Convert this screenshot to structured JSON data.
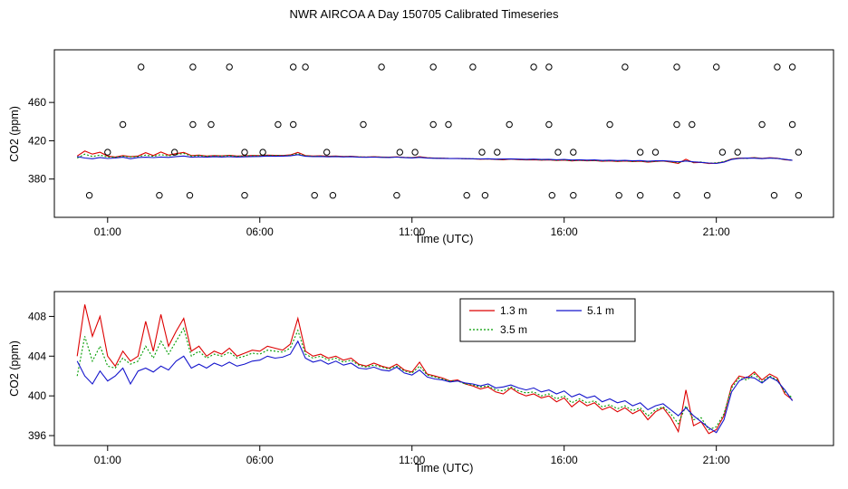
{
  "title": "NWR AIRCOA A  Day 150705  Calibrated Timeseries",
  "colors": {
    "series_1_3m": "#dd0000",
    "series_3_5m": "#009c00",
    "series_5_1m": "#1414cc",
    "axis": "#000000"
  },
  "chart_data": [
    {
      "type": "line",
      "panel": "full-calibrated-timeseries",
      "xlabel": "Time (UTC)",
      "ylabel": "CO2 (ppm)",
      "xlim": [
        -0.75,
        24.85
      ],
      "ylim": [
        340,
        515
      ],
      "xticks": [
        1,
        6,
        11,
        16,
        21
      ],
      "xtick_labels": [
        "01:00",
        "06:00",
        "11:00",
        "16:00",
        "21:00"
      ],
      "yticks": [
        380,
        420,
        460
      ],
      "grid": false,
      "x_start": 0,
      "x_step": 0.25,
      "series": [
        {
          "name": "1.3 m",
          "color": "#dd0000",
          "dash": "",
          "values": [
            404.0,
            409.2,
            406.0,
            408.0,
            404.0,
            403.0,
            404.5,
            403.5,
            404.0,
            407.5,
            404.5,
            408.2,
            405.0,
            406.5,
            407.8,
            404.5,
            405.0,
            404.0,
            404.5,
            404.2,
            404.8,
            404.0,
            404.3,
            404.6,
            404.5,
            405.0,
            404.8,
            404.6,
            405.2,
            407.8,
            404.5,
            404.0,
            404.2,
            403.8,
            404.0,
            403.6,
            403.8,
            403.2,
            403.0,
            403.3,
            403.0,
            402.8,
            403.2,
            402.6,
            402.4,
            403.4,
            402.2,
            402.0,
            401.8,
            401.5,
            401.6,
            401.2,
            401.0,
            400.7,
            400.9,
            400.4,
            400.2,
            400.8,
            400.3,
            400.0,
            400.2,
            399.8,
            400.0,
            399.4,
            399.8,
            398.9,
            399.5,
            399.0,
            399.3,
            398.6,
            398.9,
            398.4,
            398.8,
            398.2,
            398.6,
            397.6,
            398.4,
            398.8,
            397.8,
            396.4,
            400.6,
            397.0,
            397.4,
            396.2,
            396.6,
            398.0,
            401.0,
            402.0,
            401.8,
            402.4,
            401.6,
            402.2,
            401.8,
            400.2,
            399.6
          ]
        },
        {
          "name": "3.5 m",
          "color": "#009c00",
          "dash": "2,2",
          "values": [
            402.0,
            406.0,
            403.5,
            405.0,
            403.0,
            402.8,
            403.8,
            403.2,
            403.5,
            405.0,
            403.8,
            405.5,
            404.2,
            405.5,
            406.8,
            404.0,
            404.5,
            403.8,
            404.2,
            404.0,
            404.4,
            403.8,
            404.0,
            404.3,
            404.2,
            404.6,
            404.5,
            404.4,
            404.8,
            406.6,
            404.2,
            403.8,
            404.0,
            403.6,
            403.8,
            403.4,
            403.6,
            403.1,
            402.9,
            403.1,
            402.9,
            402.7,
            403.0,
            402.5,
            402.3,
            403.0,
            402.1,
            401.9,
            401.7,
            401.5,
            401.5,
            401.2,
            401.1,
            400.9,
            401.0,
            400.6,
            400.5,
            400.9,
            400.5,
            400.3,
            400.4,
            400.0,
            400.2,
            399.7,
            400.0,
            399.3,
            399.7,
            399.3,
            399.5,
            398.9,
            399.1,
            398.7,
            399.0,
            398.5,
            398.8,
            398.0,
            398.6,
            398.9,
            398.2,
            397.2,
            399.0,
            397.6,
            397.8,
            396.6,
            396.9,
            398.2,
            400.8,
            401.8,
            401.6,
            402.2,
            401.4,
            402.0,
            401.6,
            400.4,
            399.8
          ]
        },
        {
          "name": "5.1 m",
          "color": "#1414cc",
          "dash": "",
          "values": [
            403.5,
            402.0,
            401.2,
            402.5,
            401.5,
            402.0,
            402.8,
            401.2,
            402.5,
            402.8,
            402.4,
            403.0,
            402.6,
            403.5,
            404.0,
            402.8,
            403.2,
            402.8,
            403.3,
            403.0,
            403.4,
            403.0,
            403.2,
            403.5,
            403.6,
            404.0,
            403.8,
            403.9,
            404.2,
            405.5,
            403.8,
            403.4,
            403.6,
            403.2,
            403.5,
            403.1,
            403.3,
            402.8,
            402.7,
            402.9,
            402.6,
            402.5,
            402.9,
            402.3,
            402.1,
            402.6,
            401.9,
            401.7,
            401.6,
            401.4,
            401.5,
            401.3,
            401.2,
            401.0,
            401.2,
            400.8,
            400.9,
            401.1,
            400.8,
            400.6,
            400.8,
            400.4,
            400.6,
            400.2,
            400.5,
            399.9,
            400.2,
            399.8,
            400.0,
            399.4,
            399.7,
            399.3,
            399.5,
            399.0,
            399.3,
            398.6,
            399.0,
            399.2,
            398.6,
            398.0,
            398.8,
            398.0,
            397.4,
            396.8,
            396.3,
            397.6,
            400.4,
            401.5,
            401.9,
            401.8,
            401.3,
            401.9,
            401.5,
            400.6,
            399.5
          ]
        }
      ],
      "calibration_circles": {
        "marker": "open-circle",
        "levels": [
          497,
          437,
          408,
          363
        ],
        "times": [
          [
            2.1,
            3.8,
            5.0,
            7.1,
            7.5,
            10.0,
            11.7,
            13.0,
            15.0,
            15.5,
            18.0,
            19.7,
            21.0,
            23.0,
            23.5
          ],
          [
            1.5,
            3.8,
            4.4,
            6.6,
            7.1,
            9.4,
            11.7,
            12.2,
            14.2,
            15.5,
            17.5,
            19.7,
            20.2,
            22.5,
            23.5
          ],
          [
            1.0,
            3.2,
            5.5,
            6.1,
            8.2,
            10.6,
            11.1,
            13.3,
            13.8,
            15.8,
            16.3,
            18.5,
            19.0,
            21.2,
            21.7,
            23.7
          ],
          [
            0.4,
            2.7,
            3.7,
            5.5,
            7.8,
            8.4,
            10.5,
            12.8,
            13.4,
            15.6,
            16.3,
            17.8,
            18.5,
            19.7,
            20.7,
            22.9,
            23.7
          ]
        ]
      }
    },
    {
      "type": "line",
      "panel": "ambient-zoom",
      "xlabel": "Time (UTC)",
      "ylabel": "CO2 (ppm)",
      "xlim": [
        -0.75,
        24.85
      ],
      "ylim": [
        395,
        410.5
      ],
      "xticks": [
        1,
        6,
        11,
        16,
        21
      ],
      "xtick_labels": [
        "01:00",
        "06:00",
        "11:00",
        "16:00",
        "21:00"
      ],
      "yticks": [
        396,
        400,
        404,
        408
      ],
      "grid": false,
      "x_start": 0,
      "x_step": 0.25,
      "series_from_panel": 0,
      "legend": {
        "entries": [
          "1.3 m",
          "3.5 m",
          "5.1 m"
        ],
        "columns": 2,
        "position": "top-center"
      }
    }
  ]
}
